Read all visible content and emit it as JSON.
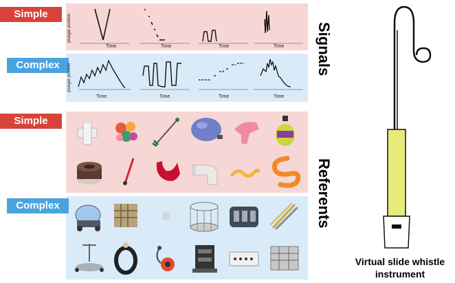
{
  "labels": {
    "simple": "Simple",
    "complex": "Complex",
    "signals": "Signals",
    "referents": "Referents",
    "instrument_line1": "Virtual slide whistle",
    "instrument_line2": "instrument"
  },
  "plot": {
    "ylabel": "plunger position",
    "xlabel": "Time"
  },
  "colors": {
    "simple_tag": "#d9423a",
    "complex_tag": "#4aa3df",
    "simple_panel": "#f7d6d6",
    "complex_panel": "#d9ebf8",
    "whistle_body": "#e6ea7a"
  },
  "referents": {
    "simple_row1": [
      "pipe-fitting-icon",
      "flower-cluster-icon",
      "grabber-tool-icon",
      "bulb-pump-icon",
      "pink-glove-icon",
      "bottle-toy-icon"
    ],
    "simple_row2": [
      "ring-dish-icon",
      "red-stick-icon",
      "red-blob-icon",
      "elbow-pipe-icon",
      "yellow-worm-icon",
      "orange-snake-icon"
    ],
    "complex_row1": [
      "robot-vacuum-icon",
      "lattice-block-icon",
      "spiky-sculpture-icon",
      "cylinder-cage-icon",
      "machine-block-icon",
      "brush-set-icon"
    ],
    "complex_row2": [
      "scooter-frame-icon",
      "tire-wheel-icon",
      "rotor-assembly-icon",
      "tower-machine-icon",
      "control-panel-icon",
      "server-rack-icon"
    ]
  }
}
